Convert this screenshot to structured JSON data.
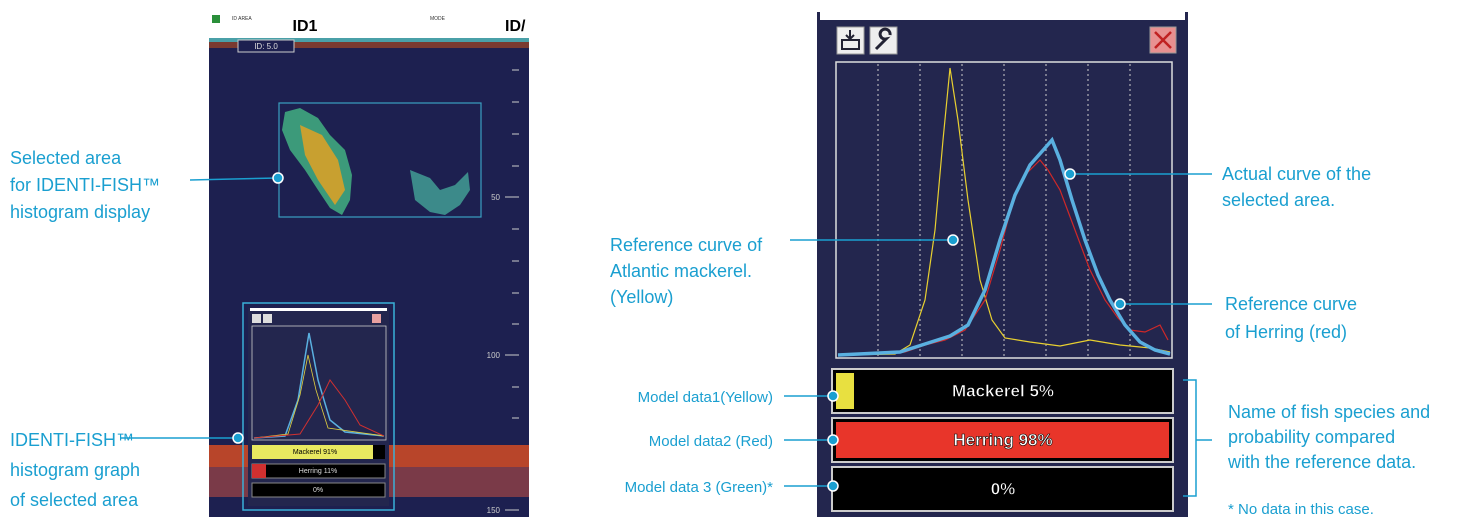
{
  "left_screen": {
    "header": {
      "area_label": "ID AREA",
      "id": "ID1",
      "mode_label": "MODE",
      "id_cut": "ID/",
      "range_box": "ID:  5.0"
    },
    "depth_labels": [
      "50",
      "100",
      "150"
    ],
    "mini_panel": {
      "bars": [
        "Mackerel  91%",
        "Herring  11%",
        "0%"
      ]
    }
  },
  "left_callouts": [
    {
      "lines": [
        "Selected area",
        "for IDENTI-FISH™",
        "histogram display"
      ]
    },
    {
      "lines": [
        "IDENTI-FISH™",
        "histogram graph",
        "of selected area"
      ]
    }
  ],
  "histogram_window": {
    "bars": [
      "Mackerel   5%",
      "Herring  98%",
      "0%"
    ]
  },
  "right_callouts": {
    "mackerel_curve": [
      "Reference curve of",
      "Atlantic mackerel.",
      "(Yellow)"
    ],
    "actual_curve": [
      "Actual curve of the",
      "selected area."
    ],
    "herring_curve": [
      "Reference curve",
      "of Herring (red)"
    ],
    "model_labels": [
      "Model data1(Yellow)",
      "Model data2 (Red)",
      "Model data 3 (Green)*"
    ],
    "species_note": [
      "Name of fish species and",
      "probability compared",
      "with the reference data."
    ],
    "footnote": "* No data in this case."
  }
}
